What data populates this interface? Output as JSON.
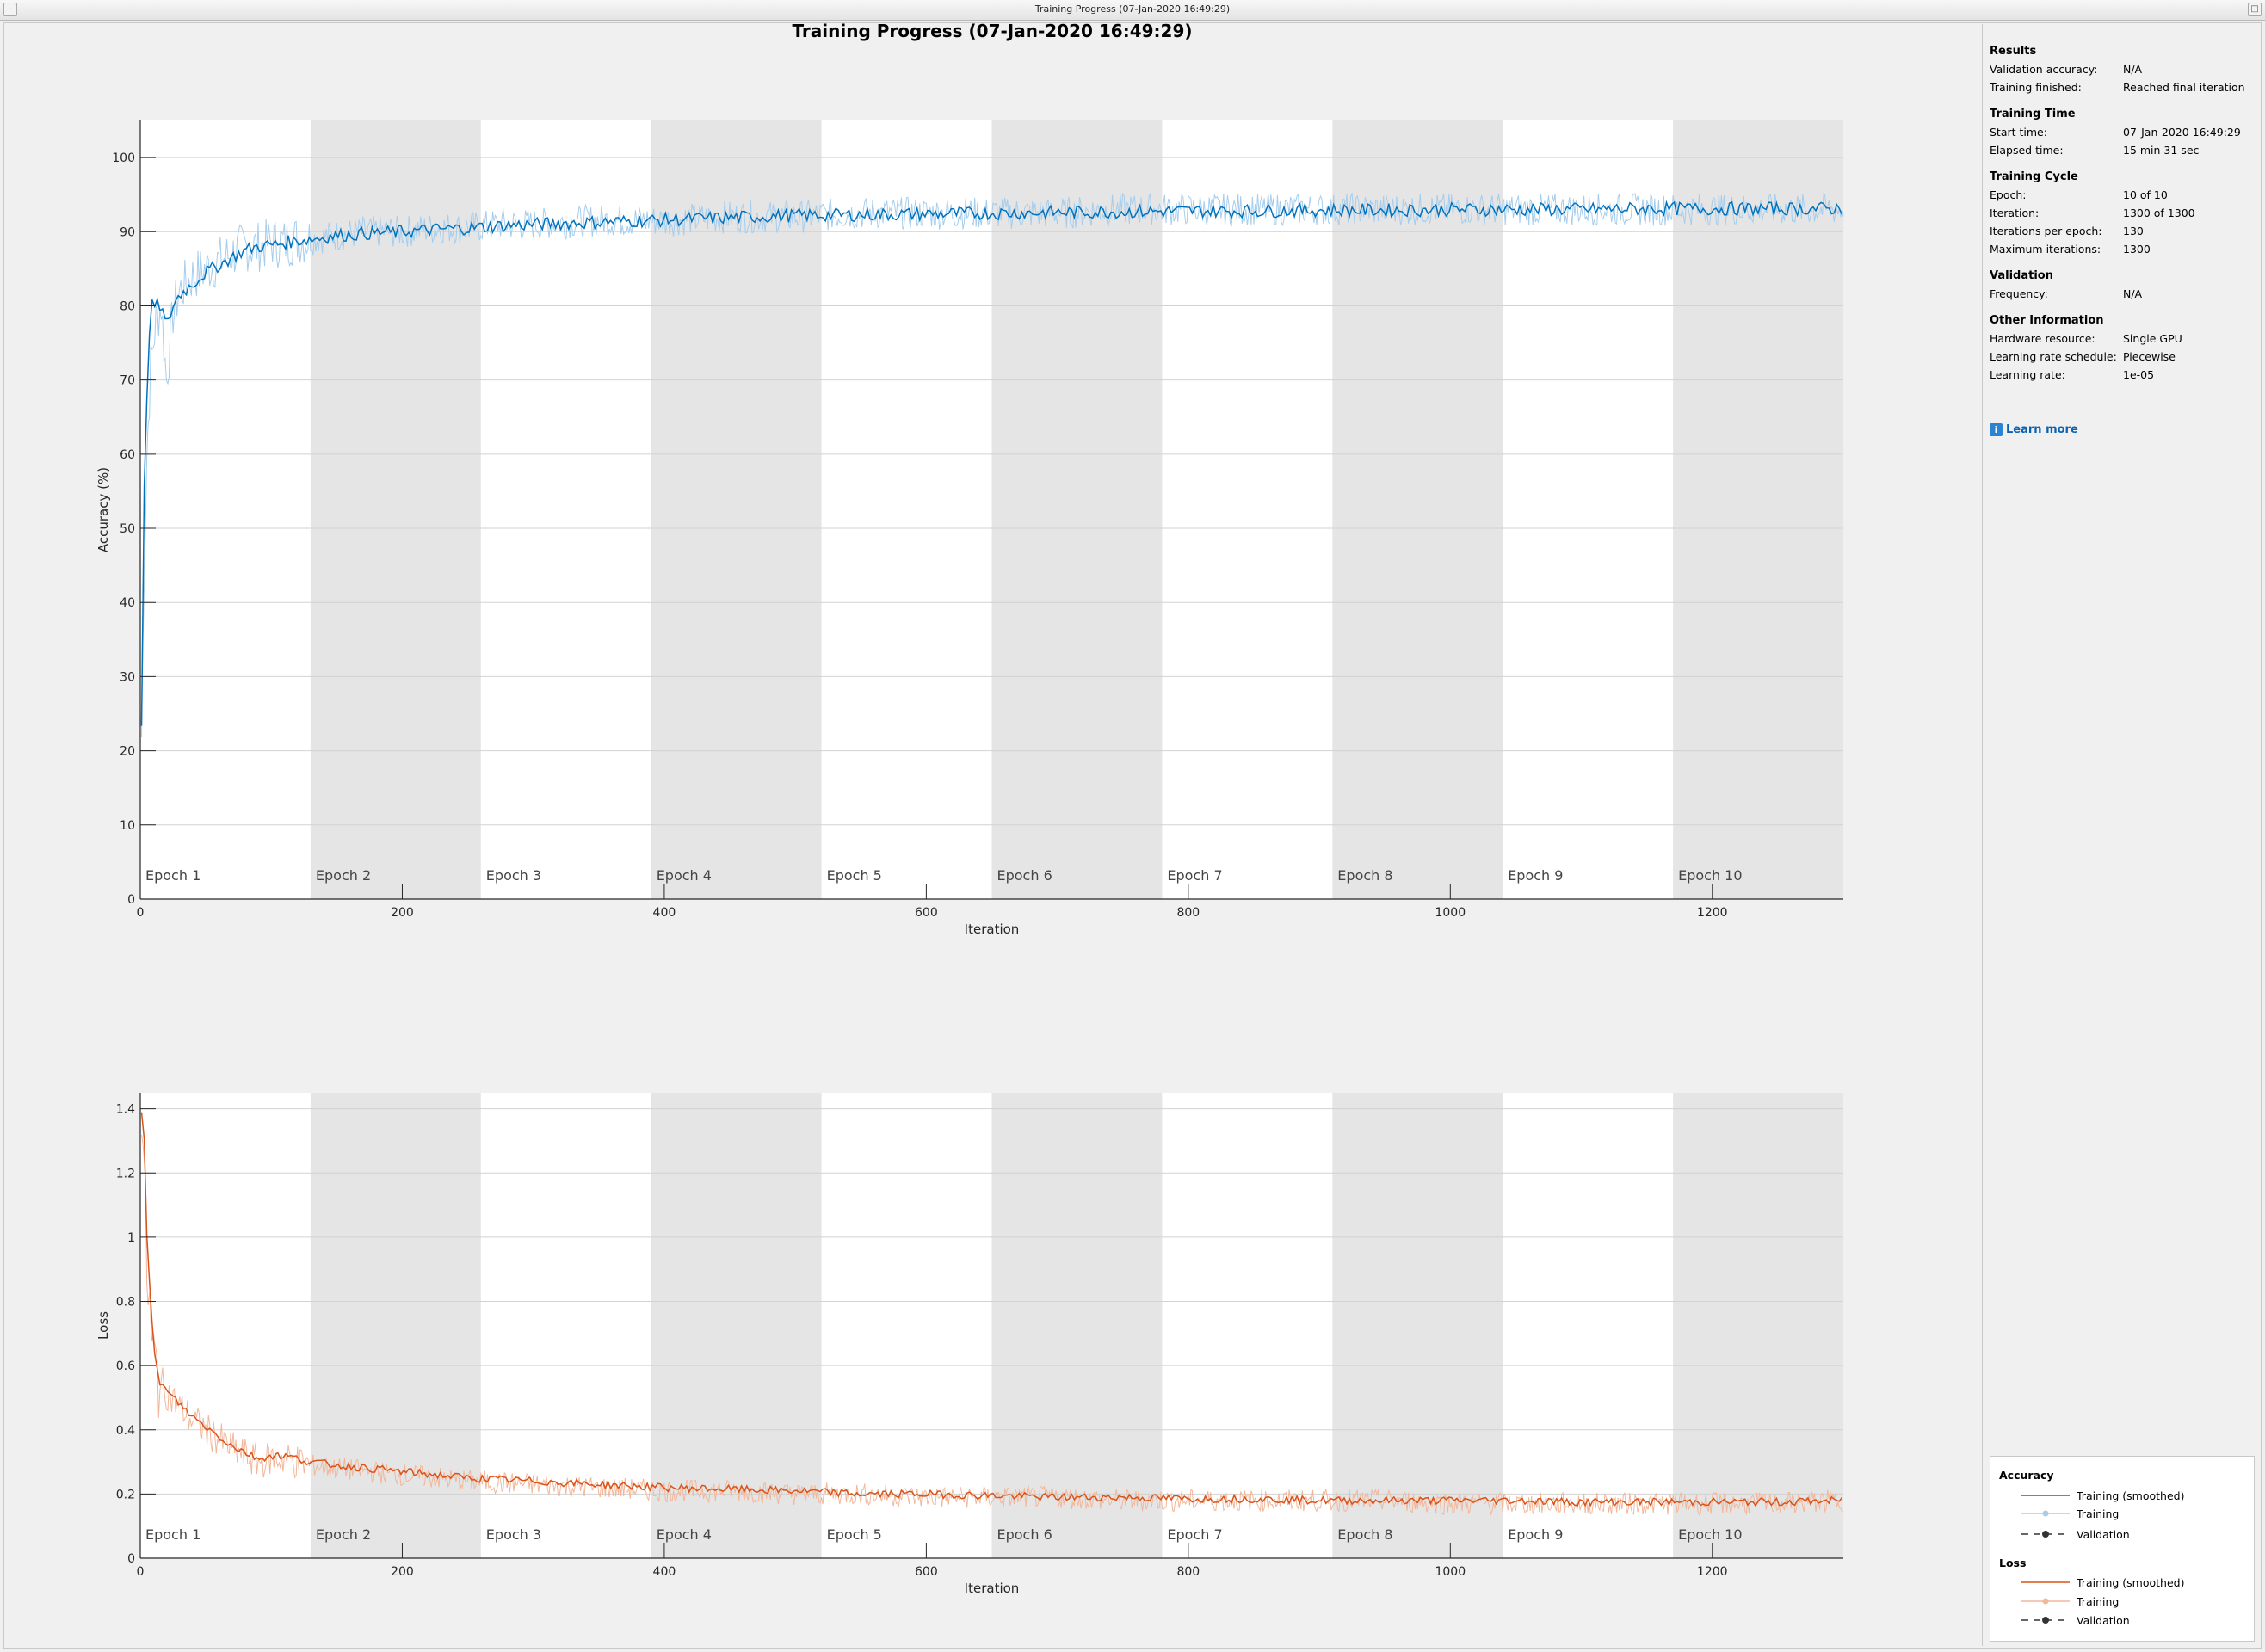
{
  "window": {
    "title": "Training Progress (07-Jan-2020 16:49:29)"
  },
  "figure_title": "Training Progress (07-Jan-2020 16:49:29)",
  "colors": {
    "accuracy_smoothed": "#0072bd",
    "accuracy_raw": "#a6cdec",
    "loss_smoothed": "#d95319",
    "loss_raw": "#f2b79a",
    "epoch_band": "#e5e5e5",
    "validation": "#333333"
  },
  "info": {
    "results": {
      "heading": "Results",
      "rows": [
        {
          "label": "Validation accuracy:",
          "value": "N/A"
        },
        {
          "label": "Training finished:",
          "value": "Reached final iteration"
        }
      ]
    },
    "training_time": {
      "heading": "Training Time",
      "rows": [
        {
          "label": "Start time:",
          "value": "07-Jan-2020 16:49:29"
        },
        {
          "label": "Elapsed time:",
          "value": "15 min 31 sec"
        }
      ]
    },
    "training_cycle": {
      "heading": "Training Cycle",
      "rows": [
        {
          "label": "Epoch:",
          "value": "10 of 10"
        },
        {
          "label": "Iteration:",
          "value": "1300 of 1300"
        },
        {
          "label": "Iterations per epoch:",
          "value": "130"
        },
        {
          "label": "Maximum iterations:",
          "value": "1300"
        }
      ]
    },
    "validation": {
      "heading": "Validation",
      "rows": [
        {
          "label": "Frequency:",
          "value": "N/A"
        }
      ]
    },
    "other": {
      "heading": "Other Information",
      "rows": [
        {
          "label": "Hardware resource:",
          "value": "Single GPU"
        },
        {
          "label": "Learning rate schedule:",
          "value": "Piecewise"
        },
        {
          "label": "Learning rate:",
          "value": "1e-05"
        }
      ]
    },
    "learn_more": "Learn more",
    "learn_more_icon": "info-icon"
  },
  "legend": {
    "accuracy_heading": "Accuracy",
    "loss_heading": "Loss",
    "items": {
      "smoothed": "Training (smoothed)",
      "training": "Training",
      "validation": "Validation"
    }
  },
  "chart_data": [
    {
      "type": "line",
      "ylabel": "Accuracy (%)",
      "xlabel": "Iteration",
      "xlim": [
        0,
        1300
      ],
      "ylim": [
        0,
        105
      ],
      "xticks": [
        0,
        200,
        400,
        600,
        800,
        1000,
        1200
      ],
      "yticks": [
        0,
        10,
        20,
        30,
        40,
        50,
        60,
        70,
        80,
        90,
        100
      ],
      "grid": "horizontal",
      "epochs": [
        "Epoch 1",
        "Epoch 2",
        "Epoch 3",
        "Epoch 4",
        "Epoch 5",
        "Epoch 6",
        "Epoch 7",
        "Epoch 8",
        "Epoch 9",
        "Epoch 10"
      ],
      "iterations_per_epoch": 130,
      "series": [
        {
          "name": "Training (smoothed)",
          "x": [
            1,
            3,
            5,
            8,
            12,
            16,
            20,
            25,
            30,
            40,
            50,
            60,
            70,
            80,
            90,
            100,
            110,
            120,
            130,
            150,
            175,
            200,
            225,
            250,
            275,
            300,
            350,
            400,
            450,
            500,
            550,
            600,
            650,
            700,
            750,
            800,
            850,
            900,
            950,
            1000,
            1050,
            1100,
            1150,
            1200,
            1250,
            1300
          ],
          "values": [
            24,
            55,
            68,
            80,
            80,
            80,
            77,
            80,
            81.5,
            83,
            84.5,
            85.5,
            86.5,
            87.5,
            88,
            88.2,
            88.5,
            88.8,
            89,
            89.5,
            89.8,
            90,
            90.3,
            90.5,
            90.8,
            91,
            91.3,
            91.6,
            91.9,
            92.2,
            92.3,
            92.4,
            92.5,
            92.6,
            92.7,
            92.8,
            92.8,
            92.9,
            92.9,
            93,
            93,
            93,
            93.1,
            93.1,
            93.1,
            93.1
          ]
        },
        {
          "name": "Training",
          "x": [
            1,
            3,
            5,
            8,
            12,
            16,
            20,
            25,
            30,
            40,
            50,
            60,
            70,
            80,
            90,
            100,
            110,
            120,
            130,
            150,
            175,
            200,
            225,
            250,
            275,
            300,
            350,
            400,
            450,
            500,
            550,
            600,
            650,
            700,
            750,
            800,
            850,
            900,
            950,
            1000,
            1050,
            1100,
            1150,
            1200,
            1250,
            1300
          ],
          "values": [
            22,
            45,
            60,
            72,
            78,
            80,
            70,
            79,
            82,
            84,
            85,
            86,
            87,
            88,
            88,
            88.5,
            88.5,
            89,
            89,
            89.5,
            90,
            90,
            90.5,
            90.5,
            91,
            91,
            91.5,
            91.5,
            92,
            92,
            92.5,
            92.5,
            92.5,
            92.5,
            93,
            93,
            93,
            93,
            93,
            93,
            93,
            93,
            93,
            93,
            93,
            93
          ]
        }
      ]
    },
    {
      "type": "line",
      "ylabel": "Loss",
      "xlabel": "Iteration",
      "xlim": [
        0,
        1300
      ],
      "ylim": [
        0,
        1.45
      ],
      "xticks": [
        0,
        200,
        400,
        600,
        800,
        1000,
        1200
      ],
      "yticks": [
        0,
        0.2,
        0.4,
        0.6,
        0.8,
        1,
        1.2,
        1.4
      ],
      "grid": "horizontal",
      "epochs": [
        "Epoch 1",
        "Epoch 2",
        "Epoch 3",
        "Epoch 4",
        "Epoch 5",
        "Epoch 6",
        "Epoch 7",
        "Epoch 8",
        "Epoch 9",
        "Epoch 10"
      ],
      "iterations_per_epoch": 130,
      "series": [
        {
          "name": "Training (smoothed)",
          "x": [
            1,
            3,
            5,
            8,
            10,
            15,
            20,
            30,
            40,
            50,
            60,
            70,
            80,
            90,
            100,
            110,
            130,
            150,
            175,
            200,
            250,
            300,
            350,
            400,
            450,
            500,
            550,
            600,
            650,
            700,
            750,
            800,
            850,
            900,
            950,
            1000,
            1050,
            1100,
            1150,
            1200,
            1250,
            1300
          ],
          "values": [
            1.4,
            1.3,
            1.0,
            0.8,
            0.65,
            0.55,
            0.52,
            0.48,
            0.44,
            0.41,
            0.38,
            0.35,
            0.33,
            0.31,
            0.32,
            0.32,
            0.3,
            0.29,
            0.28,
            0.27,
            0.25,
            0.24,
            0.23,
            0.22,
            0.215,
            0.21,
            0.2,
            0.2,
            0.195,
            0.19,
            0.19,
            0.185,
            0.185,
            0.18,
            0.18,
            0.18,
            0.18,
            0.175,
            0.175,
            0.175,
            0.175,
            0.18
          ]
        },
        {
          "name": "Training",
          "x": [
            1,
            3,
            5,
            8,
            10,
            15,
            20,
            30,
            40,
            50,
            60,
            70,
            80,
            90,
            100,
            110,
            130,
            150,
            175,
            200,
            250,
            300,
            350,
            400,
            450,
            500,
            550,
            600,
            650,
            700,
            750,
            800,
            850,
            900,
            950,
            1000,
            1050,
            1100,
            1150,
            1200,
            1250,
            1300
          ],
          "values": [
            1.42,
            1.2,
            0.9,
            0.7,
            0.62,
            0.55,
            0.52,
            0.47,
            0.43,
            0.4,
            0.37,
            0.34,
            0.32,
            0.3,
            0.31,
            0.31,
            0.29,
            0.28,
            0.27,
            0.26,
            0.24,
            0.23,
            0.22,
            0.21,
            0.21,
            0.2,
            0.2,
            0.19,
            0.19,
            0.19,
            0.18,
            0.18,
            0.18,
            0.18,
            0.18,
            0.17,
            0.17,
            0.17,
            0.17,
            0.17,
            0.17,
            0.18
          ]
        }
      ]
    }
  ]
}
